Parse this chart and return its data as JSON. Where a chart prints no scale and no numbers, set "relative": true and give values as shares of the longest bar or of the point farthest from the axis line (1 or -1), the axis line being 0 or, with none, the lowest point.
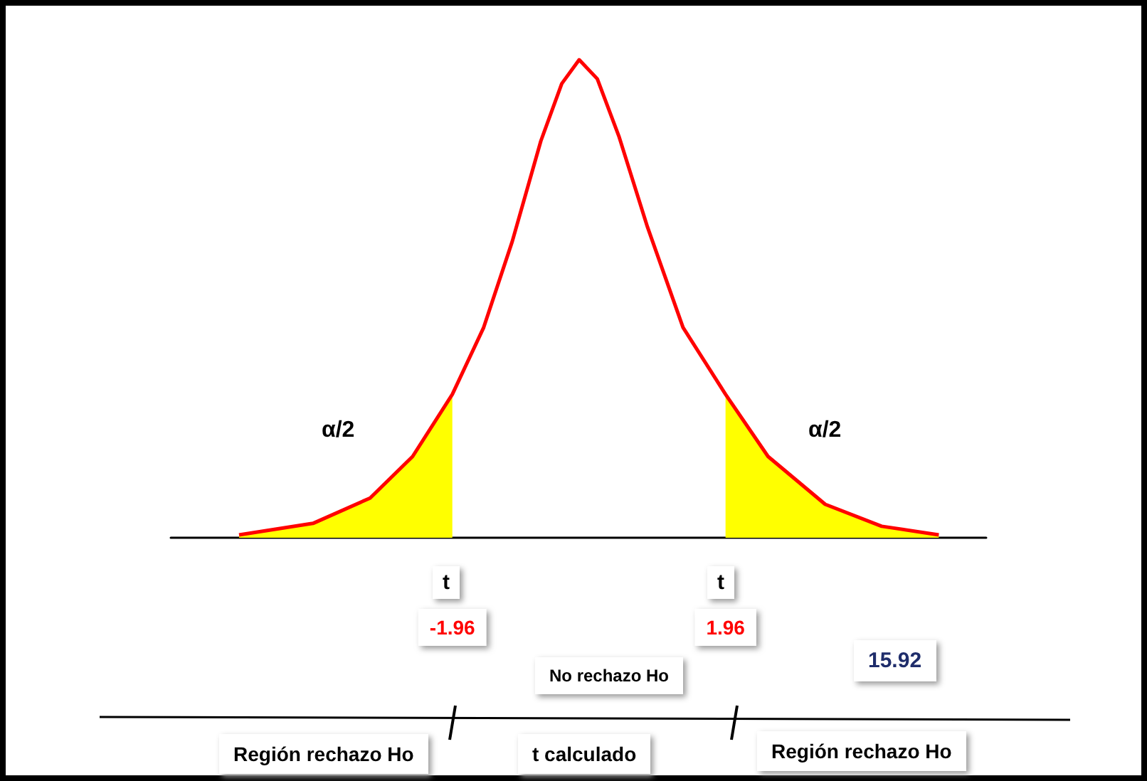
{
  "chart_data": {
    "type": "line",
    "relative": true,
    "marker": "none",
    "xlim": [
      -6,
      5.7
    ],
    "xticks": [
      {
        "value": -1.96,
        "label": "-1.96"
      },
      {
        "value": 1.96,
        "label": "1.96"
      }
    ],
    "series": [
      {
        "type": "area",
        "color": "#ffff00",
        "x": [
          -5.02,
          -3.96,
          -3.14,
          -2.53,
          -1.96
        ],
        "values": [
          0.006,
          0.03,
          0.083,
          0.17,
          0.3
        ]
      },
      {
        "type": "area",
        "color": "#ffff00",
        "x": [
          1.96,
          2.57,
          3.39,
          4.2,
          5.02
        ],
        "values": [
          0.3,
          0.17,
          0.07,
          0.024,
          0.006
        ]
      },
      {
        "color": "#ff0000",
        "x": [
          -5.02,
          -3.96,
          -3.14,
          -2.53,
          -1.96,
          -1.51,
          -1.1,
          -0.69,
          -0.39,
          -0.14,
          0.12,
          0.43,
          0.84,
          1.35,
          1.96,
          2.57,
          3.39,
          4.2,
          5.02
        ],
        "values": [
          0.006,
          0.03,
          0.083,
          0.17,
          0.3,
          0.44,
          0.62,
          0.83,
          0.95,
          1,
          0.96,
          0.84,
          0.65,
          0.44,
          0.3,
          0.17,
          0.07,
          0.024,
          0.006
        ]
      }
    ],
    "annotations": [
      "α/2",
      "α/2",
      "t",
      "t",
      "No rechazo Ho",
      "15.92",
      "Región rechazo Ho",
      "t calculado",
      "Región rechazo Ho"
    ]
  }
}
